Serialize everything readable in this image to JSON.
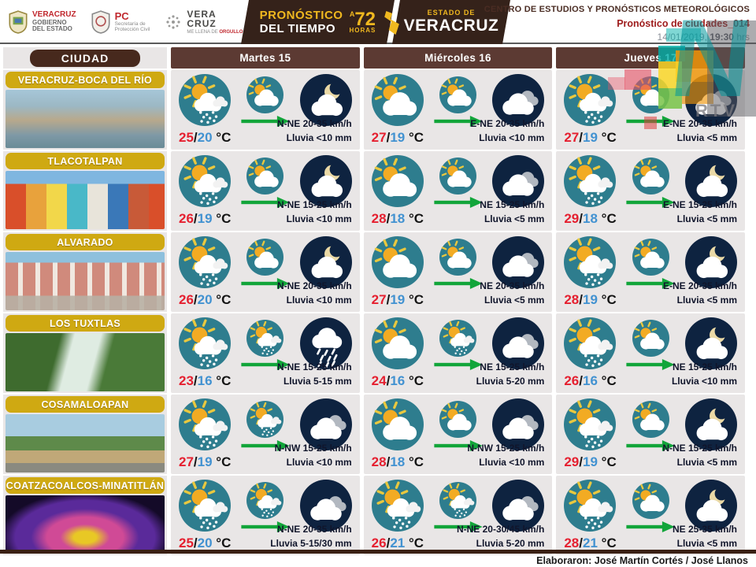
{
  "header": {
    "logos": [
      {
        "name": "veracruz-gobierno-logo",
        "line1": "VERACRUZ",
        "line2": "GOBIERNO",
        "line3": "DEL ESTADO"
      },
      {
        "name": "proteccion-civil-logo",
        "line1": "PC",
        "line2": "Secretaría de",
        "line3": "Protección Civil"
      },
      {
        "name": "veracruz-orgullo-logo",
        "line1": "VERA",
        "line2": "CRUZ",
        "line3": "ME LLENA DE ",
        "line3b": "ORGULLO"
      }
    ],
    "banner": {
      "title1": "PRONÓSTICO",
      "title2": "DEL TIEMPO",
      "hours_prefix": "A",
      "hours": "72",
      "hours_label": "HORAS",
      "state_prefix": "ESTADO DE",
      "state": "VERACRUZ"
    },
    "org": "CENTRO DE ESTUDIOS Y PRONÓSTICOS METEOROLÓGICOS",
    "doc": "Pronóstico de ciudades_014",
    "date": "14/01/2019, ",
    "time": "19:30",
    "time_suffix": " hrs"
  },
  "watermark": {
    "letter": "N",
    "label": "RTV"
  },
  "table": {
    "city_header": "CIUDAD",
    "day_headers": [
      "Martes 15",
      "Miércoles 16",
      "Jueves 17"
    ],
    "temp_sep": "/",
    "temp_unit": " °C",
    "rows": [
      {
        "city": "VERACRUZ-BOCA DEL RÍO",
        "photo": "veracruz",
        "days": [
          {
            "day_icon": "sun-cloud-rain",
            "mid_icon": "sun-cloud",
            "night_icon": "moon-cloud",
            "tmax": "25",
            "tmin": "20",
            "wind": "N-NE 20-35 km/h",
            "rain": "Lluvia <10 mm"
          },
          {
            "day_icon": "sun-cloud",
            "mid_icon": "sun-cloud",
            "night_icon": "clouds",
            "tmax": "27",
            "tmin": "19",
            "wind": "E-NE 20-35 km/h",
            "rain": "Lluvia <10 mm"
          },
          {
            "day_icon": "sun-cloud-rain",
            "mid_icon": "sun-cloud",
            "night_icon": "clouds",
            "tmax": "27",
            "tmin": "19",
            "wind": "E-NE 20-35 km/h",
            "rain": "Lluvia <5 mm"
          }
        ]
      },
      {
        "city": "TLACOTALPAN",
        "photo": "tlacotalpan",
        "days": [
          {
            "day_icon": "sun-cloud-rain",
            "mid_icon": "sun-cloud",
            "night_icon": "moon-cloud",
            "tmax": "26",
            "tmin": "19",
            "wind": "N-NE 15-25 km/h",
            "rain": "Lluvia <10 mm"
          },
          {
            "day_icon": "sun-cloud",
            "mid_icon": "sun-cloud",
            "night_icon": "clouds",
            "tmax": "28",
            "tmin": "18",
            "wind": "NE 15-25 km/h",
            "rain": "Lluvia <5 mm"
          },
          {
            "day_icon": "sun-cloud-rain",
            "mid_icon": "sun-cloud",
            "night_icon": "moon-cloud",
            "tmax": "29",
            "tmin": "18",
            "wind": "E-NE 15-25 km/h",
            "rain": "Lluvia <5 mm"
          }
        ]
      },
      {
        "city": "ALVARADO",
        "photo": "alvarado",
        "days": [
          {
            "day_icon": "sun-cloud-rain",
            "mid_icon": "sun-cloud",
            "night_icon": "moon-cloud",
            "tmax": "26",
            "tmin": "20",
            "wind": "N-NE 20-35 km/h",
            "rain": "Lluvia <10 mm"
          },
          {
            "day_icon": "sun-cloud",
            "mid_icon": "sun-cloud",
            "night_icon": "clouds",
            "tmax": "27",
            "tmin": "19",
            "wind": "NE 20-35 km/h",
            "rain": "Lluvia <5 mm"
          },
          {
            "day_icon": "sun-cloud-rain",
            "mid_icon": "sun-cloud",
            "night_icon": "moon-cloud",
            "tmax": "28",
            "tmin": "19",
            "wind": "E-NE 20-35 km/h",
            "rain": "Lluvia <5 mm"
          }
        ]
      },
      {
        "city": "LOS TUXTLAS",
        "photo": "tuxtlas",
        "days": [
          {
            "day_icon": "sun-cloud-rain",
            "mid_icon": "sun-cloud-rain",
            "night_icon": "cloud-rain",
            "tmax": "23",
            "tmin": "16",
            "wind": "N-NE 15-25 km/h",
            "rain": "Lluvia 5-15 mm"
          },
          {
            "day_icon": "sun-cloud",
            "mid_icon": "sun-cloud-rain",
            "night_icon": "clouds",
            "tmax": "24",
            "tmin": "16",
            "wind": "NE 15-25 km/h",
            "rain": "Lluvia 5-20 mm"
          },
          {
            "day_icon": "sun-cloud-rain",
            "mid_icon": "sun-cloud",
            "night_icon": "moon-cloud",
            "tmax": "26",
            "tmin": "16",
            "wind": "NE 15-25 km/h",
            "rain": "Lluvia <10 mm"
          }
        ]
      },
      {
        "city": "COSAMALOAPAN",
        "photo": "cosamaloapan",
        "days": [
          {
            "day_icon": "sun-cloud-rain",
            "mid_icon": "sun-cloud-rain",
            "night_icon": "clouds",
            "tmax": "27",
            "tmin": "19",
            "wind": "N-NW 15-25 km/h",
            "rain": "Lluvia <10 mm"
          },
          {
            "day_icon": "sun-cloud",
            "mid_icon": "sun-cloud",
            "night_icon": "clouds",
            "tmax": "28",
            "tmin": "18",
            "wind": "N-NW 15-25 km/h",
            "rain": "Lluvia <10 mm"
          },
          {
            "day_icon": "sun-cloud-rain",
            "mid_icon": "sun-cloud",
            "night_icon": "moon-cloud",
            "tmax": "29",
            "tmin": "19",
            "wind": "N-NE 15-25 km/h",
            "rain": "Lluvia <5 mm"
          }
        ]
      },
      {
        "city": "COATZACOALCOS-MINATITLÁN",
        "photo": "coatza",
        "days": [
          {
            "day_icon": "sun-cloud-rain",
            "mid_icon": "sun-cloud-rain",
            "night_icon": "clouds",
            "tmax": "25",
            "tmin": "20",
            "wind": "N-NE 20-35 km/h",
            "rain": "Lluvia 5-15/30 mm"
          },
          {
            "day_icon": "sun-cloud-rain",
            "mid_icon": "sun-cloud-rain",
            "night_icon": "clouds",
            "tmax": "26",
            "tmin": "21",
            "wind": "N-NE 20-30/45 km/h",
            "rain": "Lluvia 5-20 mm"
          },
          {
            "day_icon": "sun-cloud-rain",
            "mid_icon": "sun-cloud",
            "night_icon": "moon-cloud",
            "tmax": "28",
            "tmin": "21",
            "wind": "NE 25-35 km/h",
            "rain": "Lluvia <5 mm"
          }
        ]
      }
    ]
  },
  "footer": {
    "credit": "Elaboraron: José Martín Cortés / José Llanos"
  }
}
